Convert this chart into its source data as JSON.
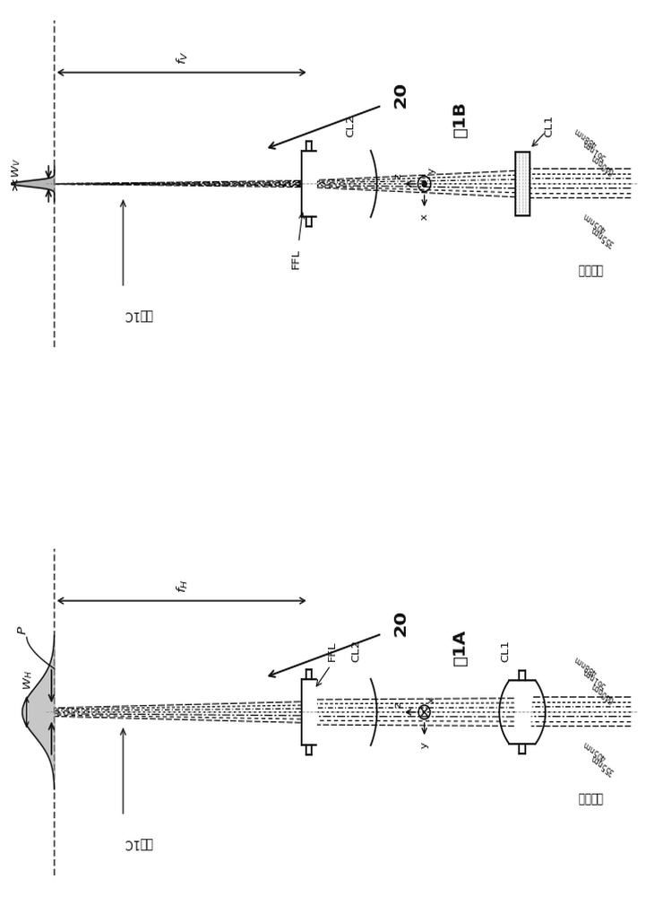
{
  "bg_color": "#ffffff",
  "lc": "#111111",
  "fig_width": 7.4,
  "fig_height": 10.0,
  "fig1a_label": "图1A",
  "fig1b_label": "图1B",
  "label_jiantu1c": "见图1C",
  "label_ffl": "FFL",
  "label_cl2": "CL2",
  "label_cl1": "CL1",
  "label_input": "准直输入",
  "label_p": "P",
  "label_fH": "$f_H$",
  "label_fV": "$f_V$",
  "label_wH": "$W_H$",
  "label_wV": "$W_V$",
  "label_20": "20",
  "wavelengths_left": [
    "355nm",
    "405nm"
  ],
  "wavelengths_right": [
    "640nm",
    "561nm",
    "488nm"
  ],
  "panel_A_note": "horizontal view - CL1 biconvex, CL2 planoconcave, beam stays wide",
  "panel_B_note": "vertical view - CL1 rectangle, CL2 planoconcave, beam converges strongly"
}
